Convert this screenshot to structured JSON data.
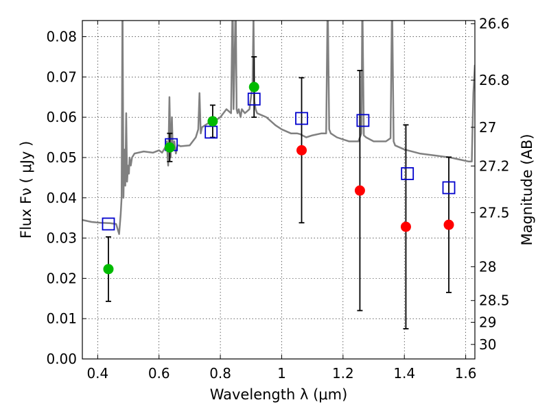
{
  "chart_data": {
    "type": "scatter",
    "xlabel": "Wavelength  λ (μm)",
    "ylabel": "Flux  Fν  ( μJy )",
    "y2label": "Magnitude (AB)",
    "xlim": [
      0.35,
      1.63
    ],
    "ylim": [
      0.0,
      0.084
    ],
    "grid": true,
    "x_ticks": [
      {
        "value": 0.4,
        "label": "0.4"
      },
      {
        "value": 0.6,
        "label": "0.6"
      },
      {
        "value": 0.8,
        "label": "0.8"
      },
      {
        "value": 1.0,
        "label": "1"
      },
      {
        "value": 1.2,
        "label": "1.2"
      },
      {
        "value": 1.4,
        "label": "1.4"
      },
      {
        "value": 1.6,
        "label": "1.6"
      }
    ],
    "y_ticks": [
      {
        "value": 0.0,
        "label": "0.00"
      },
      {
        "value": 0.01,
        "label": "0.01"
      },
      {
        "value": 0.02,
        "label": "0.02"
      },
      {
        "value": 0.03,
        "label": "0.03"
      },
      {
        "value": 0.04,
        "label": "0.04"
      },
      {
        "value": 0.05,
        "label": "0.05"
      },
      {
        "value": 0.06,
        "label": "0.06"
      },
      {
        "value": 0.07,
        "label": "0.07"
      },
      {
        "value": 0.08,
        "label": "0.08"
      }
    ],
    "y2_ticks": [
      {
        "flux": 0.0832,
        "label": "26.6"
      },
      {
        "flux": 0.0692,
        "label": "26.8"
      },
      {
        "flux": 0.0575,
        "label": "27"
      },
      {
        "flux": 0.0479,
        "label": "27.2"
      },
      {
        "flux": 0.0363,
        "label": "27.5"
      },
      {
        "flux": 0.0229,
        "label": "28"
      },
      {
        "flux": 0.0145,
        "label": "28.5"
      },
      {
        "flux": 0.0091,
        "label": "29"
      },
      {
        "flux": 0.0036,
        "label": "30"
      }
    ],
    "series": [
      {
        "kind": "photometry_detected",
        "color": "#00bb00",
        "points": [
          {
            "x": 0.435,
            "y": 0.0223,
            "err": 0.008
          },
          {
            "x": 0.635,
            "y": 0.0525,
            "err": 0.0035
          },
          {
            "x": 0.775,
            "y": 0.059,
            "err": 0.004
          },
          {
            "x": 0.91,
            "y": 0.0675,
            "err": 0.0075
          }
        ]
      },
      {
        "kind": "photometry_upper",
        "color": "#ff0000",
        "points": [
          {
            "x": 1.065,
            "y": 0.0518,
            "err": 0.018
          },
          {
            "x": 1.255,
            "y": 0.0418,
            "err": 0.0298
          },
          {
            "x": 1.405,
            "y": 0.0328,
            "err": 0.0253
          },
          {
            "x": 1.545,
            "y": 0.0333,
            "err": 0.0168
          }
        ]
      },
      {
        "kind": "model_bandpass",
        "color": "#0000cc",
        "points": [
          {
            "x": 0.435,
            "y": 0.0335
          },
          {
            "x": 0.64,
            "y": 0.0532
          },
          {
            "x": 0.77,
            "y": 0.0563
          },
          {
            "x": 0.91,
            "y": 0.0645
          },
          {
            "x": 1.065,
            "y": 0.0597
          },
          {
            "x": 1.265,
            "y": 0.0592
          },
          {
            "x": 1.41,
            "y": 0.046
          },
          {
            "x": 1.545,
            "y": 0.0425
          }
        ]
      },
      {
        "kind": "model_spectrum",
        "color": "#808080",
        "x": [
          0.35,
          0.38,
          0.41,
          0.44,
          0.46,
          0.47,
          0.475,
          0.478,
          0.481,
          0.484,
          0.487,
          0.49,
          0.493,
          0.496,
          0.499,
          0.502,
          0.504,
          0.508,
          0.512,
          0.52,
          0.55,
          0.58,
          0.6,
          0.61,
          0.62,
          0.625,
          0.63,
          0.634,
          0.638,
          0.642,
          0.645,
          0.65,
          0.655,
          0.66,
          0.665,
          0.67,
          0.7,
          0.72,
          0.728,
          0.732,
          0.736,
          0.74,
          0.76,
          0.78,
          0.8,
          0.82,
          0.835,
          0.84,
          0.843,
          0.848,
          0.85,
          0.853,
          0.856,
          0.86,
          0.866,
          0.87,
          0.88,
          0.895,
          0.905,
          0.908,
          0.911,
          0.915,
          0.92,
          0.95,
          0.98,
          1.0,
          1.03,
          1.05,
          1.06,
          1.08,
          1.1,
          1.13,
          1.145,
          1.15,
          1.155,
          1.16,
          1.18,
          1.2,
          1.22,
          1.25,
          1.26,
          1.263,
          1.268,
          1.275,
          1.3,
          1.34,
          1.355,
          1.36,
          1.365,
          1.37,
          1.4,
          1.45,
          1.5,
          1.55,
          1.58,
          1.61,
          1.62,
          1.622,
          1.625,
          1.63
        ],
        "y": [
          0.0345,
          0.034,
          0.0338,
          0.0337,
          0.0335,
          0.031,
          0.036,
          0.04,
          0.09,
          0.04,
          0.052,
          0.043,
          0.061,
          0.044,
          0.048,
          0.046,
          0.05,
          0.048,
          0.05,
          0.051,
          0.0515,
          0.0512,
          0.0518,
          0.0512,
          0.0525,
          0.054,
          0.048,
          0.065,
          0.05,
          0.06,
          0.052,
          0.054,
          0.051,
          0.053,
          0.053,
          0.0528,
          0.053,
          0.055,
          0.057,
          0.066,
          0.056,
          0.0575,
          0.0585,
          0.059,
          0.06,
          0.062,
          0.061,
          0.09,
          0.062,
          0.08,
          0.09,
          0.062,
          0.061,
          0.062,
          0.06,
          0.062,
          0.061,
          0.062,
          0.068,
          0.085,
          0.064,
          0.062,
          0.061,
          0.06,
          0.058,
          0.057,
          0.056,
          0.056,
          0.0558,
          0.055,
          0.0555,
          0.056,
          0.056,
          0.09,
          0.057,
          0.056,
          0.055,
          0.0545,
          0.054,
          0.054,
          0.056,
          0.09,
          0.0555,
          0.055,
          0.054,
          0.054,
          0.0548,
          0.09,
          0.054,
          0.053,
          0.052,
          0.051,
          0.0505,
          0.05,
          0.0495,
          0.049,
          0.049,
          0.056,
          0.066,
          0.073
        ]
      }
    ]
  }
}
